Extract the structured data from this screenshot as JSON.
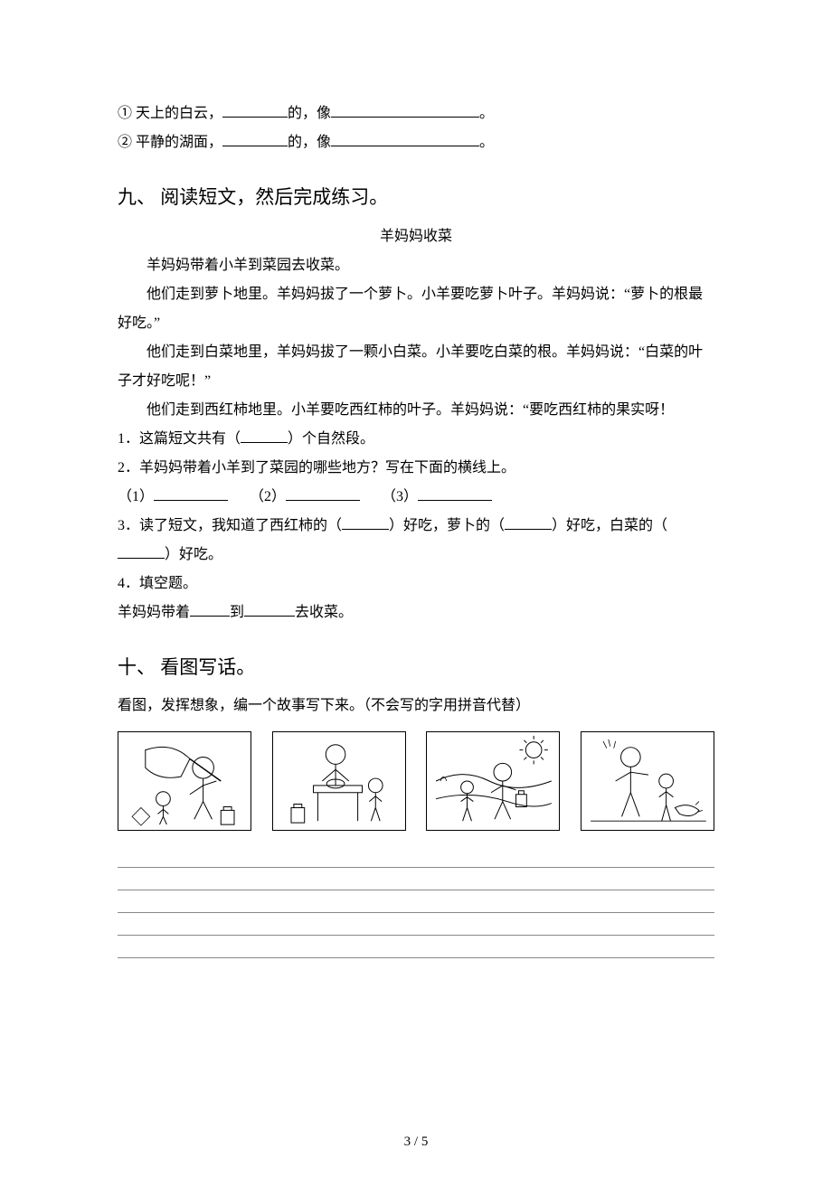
{
  "blank_widths": {
    "short": "72px",
    "med": "164px",
    "q": "52px",
    "ans": "82px",
    "small": "44px",
    "tiny": "56px"
  },
  "fill": {
    "item1": {
      "num": "①",
      "pre": "天上的白云，",
      "mid": "的，像",
      "tail": "。"
    },
    "item2": {
      "num": "②",
      "pre": "平静的湖面，",
      "mid": "的，像",
      "tail": "。"
    }
  },
  "sec9": {
    "heading": "九、 阅读短文，然后完成练习。",
    "title": "羊妈妈收菜",
    "p1": "羊妈妈带着小羊到菜园去收菜。",
    "p2": "他们走到萝卜地里。羊妈妈拔了一个萝卜。小羊要吃萝卜叶子。羊妈妈说：“萝卜的根最好吃。”",
    "p3": "他们走到白菜地里，羊妈妈拔了一颗小白菜。小羊要吃白菜的根。羊妈妈说：“白菜的叶子才好吃呢！”",
    "p4": "他们走到西红柿地里。小羊要吃西红柿的叶子。羊妈妈说：“要吃西红柿的果实呀！",
    "q1_a": "1．这篇短文共有（",
    "q1_b": "）个自然段。",
    "q2": "2．羊妈妈带着小羊到了菜园的哪些地方？写在下面的横线上。",
    "q2_opts": {
      "a": "（1）",
      "b": "（2）",
      "c": "（3）"
    },
    "q3_a": "3．读了短文，我知道了西红柿的（",
    "q3_b": "）好吃，萝卜的（",
    "q3_c": "）好吃，白菜的（",
    "q3_d": "）好吃。",
    "q4": "4．填空题。",
    "q4_line_a": "羊妈妈带着",
    "q4_line_b": "到",
    "q4_line_c": "去收菜。"
  },
  "sec10": {
    "heading": "十、 看图写话。",
    "instr": "看图，发挥想象，编一个故事写下来。（不会写的字用拼音代替）",
    "img_count": 4,
    "writing_line_count": 5
  },
  "page_num": "3 / 5"
}
